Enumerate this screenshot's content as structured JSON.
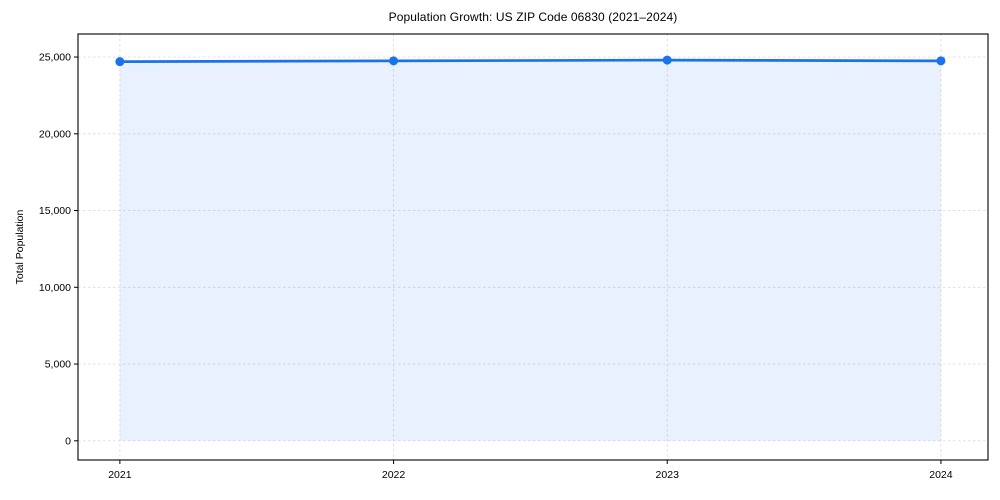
{
  "chart_data": {
    "type": "line",
    "title": "Population Growth: US ZIP Code 06830 (2021–2024)",
    "xlabel": "",
    "ylabel": "Total Population",
    "x": [
      2021,
      2022,
      2023,
      2024
    ],
    "x_tick_labels": [
      "2021",
      "2022",
      "2023",
      "2024"
    ],
    "series": [
      {
        "name": "Total Population",
        "values": [
          24700,
          24750,
          24800,
          24750
        ]
      }
    ],
    "yticks": [
      0,
      5000,
      10000,
      15000,
      20000,
      25000
    ],
    "ytick_labels": [
      "0",
      "5,000",
      "10,000",
      "15,000",
      "20,000",
      "25,000"
    ],
    "xlim": [
      2020.847,
      2024.172
    ],
    "ylim": [
      -1250,
      26500
    ],
    "grid": true,
    "legend": "none",
    "area_fill": true,
    "area_fill_baseline": 0,
    "marker": "circle",
    "colors": {
      "line": "#1a73e8",
      "marker": "#1a73e8",
      "fill": "#1a73e8",
      "grid": "#dcdcdc",
      "spine": "#000000",
      "text": "#000000",
      "background": "#ffffff"
    },
    "fill_opacity": 0.1
  }
}
